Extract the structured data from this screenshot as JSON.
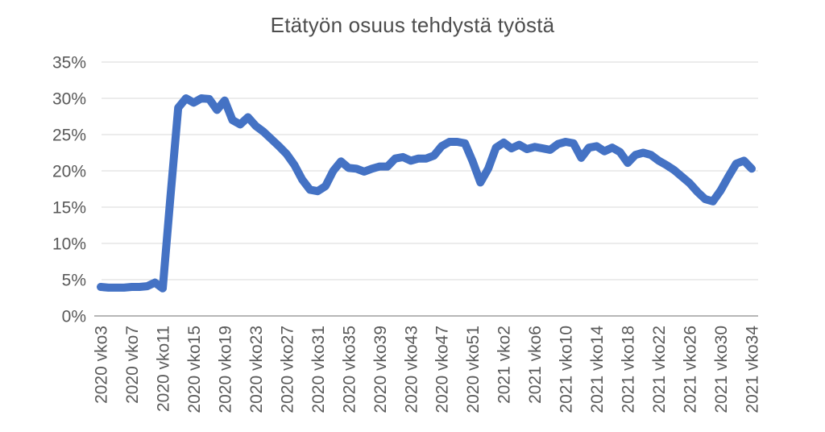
{
  "chart_data": {
    "type": "line",
    "title": "Etätyön osuus tehdystä työstä",
    "xlabel": "",
    "ylabel": "",
    "unit": "%",
    "ylim": [
      0,
      35
    ],
    "grid": "horizontal",
    "legend": "none",
    "y_tick_labels": [
      "0%",
      "5%",
      "10%",
      "15%",
      "20%",
      "25%",
      "30%",
      "35%"
    ],
    "x_tick_labels": [
      "2020 vko3",
      "2020 vko7",
      "2020 vko11",
      "2020 vko15",
      "2020 vko19",
      "2020 vko23",
      "2020 vko27",
      "2020 vko31",
      "2020 vko35",
      "2020 vko39",
      "2020 vko43",
      "2020 vko47",
      "2020 vko51",
      "2021 vko2",
      "2021 vko6",
      "2021 vko10",
      "2021 vko14",
      "2021 vko18",
      "2021 vko22",
      "2021 vko26",
      "2021 vko30",
      "2021 vko34"
    ],
    "x_tick_every": 4,
    "categories": [
      "2020 vko3",
      "2020 vko4",
      "2020 vko5",
      "2020 vko6",
      "2020 vko7",
      "2020 vko8",
      "2020 vko9",
      "2020 vko10",
      "2020 vko11",
      "2020 vko12",
      "2020 vko13",
      "2020 vko14",
      "2020 vko15",
      "2020 vko16",
      "2020 vko17",
      "2020 vko18",
      "2020 vko19",
      "2020 vko20",
      "2020 vko21",
      "2020 vko22",
      "2020 vko23",
      "2020 vko24",
      "2020 vko25",
      "2020 vko26",
      "2020 vko27",
      "2020 vko28",
      "2020 vko29",
      "2020 vko30",
      "2020 vko31",
      "2020 vko32",
      "2020 vko33",
      "2020 vko34",
      "2020 vko35",
      "2020 vko36",
      "2020 vko37",
      "2020 vko38",
      "2020 vko39",
      "2020 vko40",
      "2020 vko41",
      "2020 vko42",
      "2020 vko43",
      "2020 vko44",
      "2020 vko45",
      "2020 vko46",
      "2020 vko47",
      "2020 vko48",
      "2020 vko49",
      "2020 vko50",
      "2020 vko51",
      "2020 vko52",
      "2020 vko53",
      "2021 vko1",
      "2021 vko2",
      "2021 vko3",
      "2021 vko4",
      "2021 vko5",
      "2021 vko6",
      "2021 vko7",
      "2021 vko8",
      "2021 vko9",
      "2021 vko10",
      "2021 vko11",
      "2021 vko12",
      "2021 vko13",
      "2021 vko14",
      "2021 vko15",
      "2021 vko16",
      "2021 vko17",
      "2021 vko18",
      "2021 vko19",
      "2021 vko20",
      "2021 vko21",
      "2021 vko22",
      "2021 vko23",
      "2021 vko24",
      "2021 vko25",
      "2021 vko26",
      "2021 vko27",
      "2021 vko28",
      "2021 vko29",
      "2021 vko30",
      "2021 vko31",
      "2021 vko32",
      "2021 vko33",
      "2021 vko34"
    ],
    "series": [
      {
        "name": "Etätyön osuus tehdystä työstä",
        "values": [
          4.0,
          3.9,
          3.9,
          3.9,
          4.0,
          4.0,
          4.1,
          4.6,
          3.8,
          16.5,
          28.7,
          30.0,
          29.4,
          30.0,
          29.9,
          28.4,
          29.7,
          27.0,
          26.4,
          27.4,
          26.2,
          25.4,
          24.4,
          23.4,
          22.3,
          20.8,
          18.8,
          17.4,
          17.2,
          17.9,
          20.0,
          21.3,
          20.4,
          20.3,
          19.9,
          20.3,
          20.6,
          20.6,
          21.7,
          21.9,
          21.4,
          21.7,
          21.7,
          22.1,
          23.4,
          24.0,
          24.0,
          23.8,
          21.3,
          18.4,
          20.3,
          23.2,
          23.9,
          23.1,
          23.6,
          23.0,
          23.3,
          23.1,
          22.9,
          23.7,
          24.0,
          23.8,
          21.8,
          23.2,
          23.4,
          22.7,
          23.2,
          22.6,
          21.1,
          22.2,
          22.5,
          22.2,
          21.4,
          20.8,
          20.1,
          19.2,
          18.3,
          17.1,
          16.1,
          15.8,
          17.3,
          19.2,
          21.0,
          21.4,
          20.3
        ]
      }
    ],
    "colors": {
      "line": "#4472C4",
      "gridline": "#D9D9D9",
      "axis_line": "#9E9E9E",
      "tick_text": "#595959",
      "title_text": "#4d4d4d",
      "background": "#FFFFFF"
    }
  }
}
